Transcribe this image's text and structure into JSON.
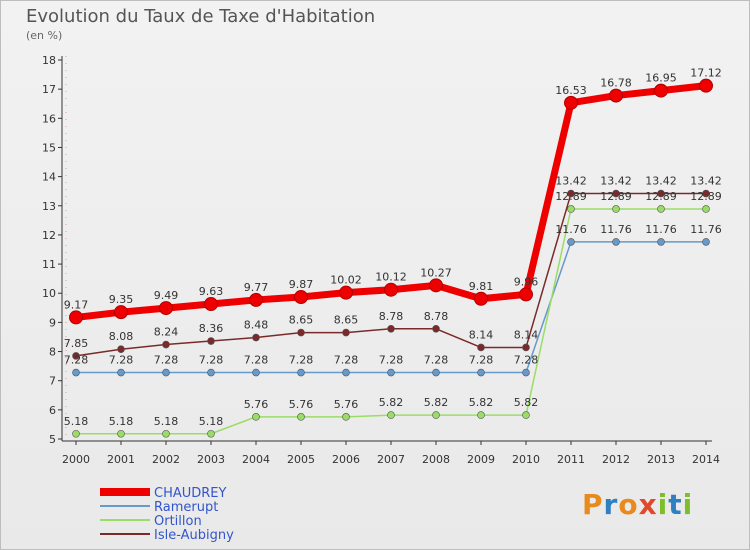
{
  "title": "Evolution du Taux de Taxe d'Habitation",
  "subtitle": "(en %)",
  "logo": {
    "text": "Proxiti",
    "colors": [
      "#e98a1c",
      "#2f7fc1",
      "#e98a1c",
      "#e04a2b",
      "#7cbf2a",
      "#2f7fc1",
      "#7cbf2a"
    ]
  },
  "chart_data": {
    "type": "line",
    "x": [
      "2000",
      "2001",
      "2002",
      "2003",
      "2004",
      "2005",
      "2006",
      "2007",
      "2008",
      "2009",
      "2010",
      "2011",
      "2012",
      "2013",
      "2014"
    ],
    "ylim": [
      5,
      18
    ],
    "yticks": [
      "5",
      "6",
      "7",
      "8",
      "9",
      "10",
      "11",
      "12",
      "13",
      "14",
      "15",
      "16",
      "17",
      "18"
    ],
    "grid": false,
    "legend": "bottom-left",
    "series": [
      {
        "name": "CHAUDREY",
        "color": "#ee0000",
        "values": [
          9.17,
          9.35,
          9.49,
          9.63,
          9.77,
          9.87,
          10.02,
          10.12,
          10.27,
          9.81,
          9.96,
          16.53,
          16.78,
          16.95,
          17.12
        ],
        "labels": [
          "9.17",
          "9.35",
          "9.49",
          "9.63",
          "9.77",
          "9.87",
          "10.02",
          "10.12",
          "10.27",
          "9.81",
          "9.96",
          "16.53",
          "16.78",
          "16.95",
          "17.12"
        ]
      },
      {
        "name": "Ramerupt",
        "color": "#6699cc",
        "values": [
          7.28,
          7.28,
          7.28,
          7.28,
          7.28,
          7.28,
          7.28,
          7.28,
          7.28,
          7.28,
          7.28,
          11.76,
          11.76,
          11.76,
          11.76
        ],
        "labels": [
          "7.28",
          "7.28",
          "7.28",
          "7.28",
          "7.28",
          "7.28",
          "7.28",
          "7.28",
          "7.28",
          "7.28",
          "7.28",
          "11.76",
          "11.76",
          "11.76",
          "11.76"
        ]
      },
      {
        "name": "Ortillon",
        "color": "#99dd66",
        "values": [
          5.18,
          5.18,
          5.18,
          5.18,
          5.76,
          5.76,
          5.76,
          5.82,
          5.82,
          5.82,
          5.82,
          12.89,
          12.89,
          12.89,
          12.89
        ],
        "labels": [
          "5.18",
          "5.18",
          "5.18",
          "5.18",
          "5.76",
          "5.76",
          "5.76",
          "5.82",
          "5.82",
          "5.82",
          "5.82",
          "12.89",
          "12.89",
          "12.89",
          "12.89"
        ]
      },
      {
        "name": "Isle-Aubigny",
        "color": "#7a2a2a",
        "values": [
          7.85,
          8.08,
          8.24,
          8.36,
          8.48,
          8.65,
          8.65,
          8.78,
          8.78,
          8.14,
          8.14,
          13.42,
          13.42,
          13.42,
          13.42
        ],
        "labels": [
          "7.85",
          "8.08",
          "8.24",
          "8.36",
          "8.48",
          "8.65",
          "8.65",
          "8.78",
          "8.78",
          "8.14",
          "8.14",
          "13.42",
          "13.42",
          "13.42",
          "13.42"
        ]
      }
    ]
  }
}
